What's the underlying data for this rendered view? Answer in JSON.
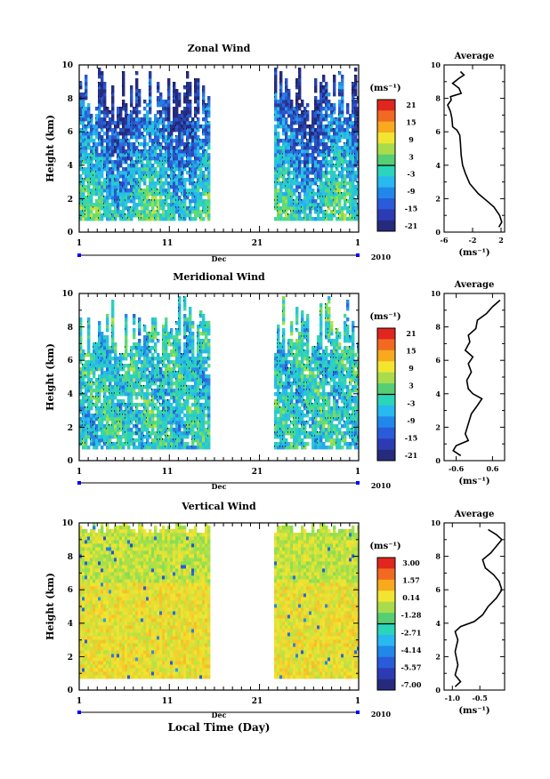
{
  "chart_data": [
    {
      "type": "heatmap",
      "title": "Zonal Wind",
      "ylabel": "Height (km)",
      "ylim": [
        0,
        10
      ],
      "y_ticks": [
        "0",
        "2",
        "4",
        "6",
        "8",
        "10"
      ],
      "x_ticks": [
        "1",
        "11",
        "21",
        "1"
      ],
      "month_label": "Dec",
      "year_label": "2010",
      "unit_label": "(ms⁻¹)",
      "colorbar_ticks": [
        "21",
        "15",
        "9",
        "3",
        "-3",
        "-9",
        "-15",
        "-21"
      ],
      "data_gap_days": [
        15.5,
        22.5
      ],
      "profile": {
        "title": "Average",
        "xlabel": "(ms⁻¹)",
        "x_ticks": [
          "-6",
          "-2",
          "2"
        ],
        "y_ticks": [
          "0",
          "2",
          "4",
          "6",
          "8",
          "10"
        ],
        "xlim": [
          -6,
          2.5
        ],
        "points": [
          [
            1.7,
            0.3
          ],
          [
            2.1,
            0.6
          ],
          [
            1.8,
            1.0
          ],
          [
            1.0,
            1.5
          ],
          [
            0.2,
            1.8
          ],
          [
            -1.2,
            2.3
          ],
          [
            -2.4,
            2.9
          ],
          [
            -3.0,
            3.5
          ],
          [
            -3.4,
            4.0
          ],
          [
            -3.6,
            4.6
          ],
          [
            -3.7,
            5.3
          ],
          [
            -3.8,
            5.8
          ],
          [
            -4.2,
            6.1
          ],
          [
            -4.8,
            6.3
          ],
          [
            -4.9,
            6.8
          ],
          [
            -5.1,
            7.2
          ],
          [
            -5.5,
            7.6
          ],
          [
            -5.0,
            7.9
          ],
          [
            -5.1,
            8.1
          ],
          [
            -3.6,
            8.3
          ],
          [
            -3.9,
            8.6
          ],
          [
            -4.8,
            8.9
          ],
          [
            -3.9,
            9.2
          ],
          [
            -3.2,
            9.4
          ],
          [
            -3.7,
            9.6
          ]
        ]
      }
    },
    {
      "type": "heatmap",
      "title": "Meridional Wind",
      "ylabel": "Height (km)",
      "ylim": [
        0,
        10
      ],
      "y_ticks": [
        "0",
        "2",
        "4",
        "6",
        "8",
        "10"
      ],
      "x_ticks": [
        "1",
        "11",
        "21",
        "1"
      ],
      "month_label": "Dec",
      "year_label": "2010",
      "unit_label": "(ms⁻¹)",
      "colorbar_ticks": [
        "21",
        "15",
        "9",
        "3",
        "-3",
        "-9",
        "-15",
        "-21"
      ],
      "data_gap_days": [
        15.5,
        22.5
      ],
      "profile": {
        "title": "Average",
        "xlabel": "(ms⁻¹)",
        "x_ticks": [
          "-0.6",
          "0.6"
        ],
        "y_ticks": [
          "0",
          "2",
          "4",
          "6",
          "8",
          "10"
        ],
        "xlim": [
          -1.0,
          1.0
        ],
        "points": [
          [
            -0.45,
            0.3
          ],
          [
            -0.7,
            0.6
          ],
          [
            -0.6,
            0.9
          ],
          [
            -0.2,
            1.2
          ],
          [
            -0.3,
            1.6
          ],
          [
            -0.2,
            2.2
          ],
          [
            -0.1,
            2.8
          ],
          [
            0.1,
            3.3
          ],
          [
            0.25,
            3.7
          ],
          [
            -0.05,
            4.0
          ],
          [
            -0.2,
            4.3
          ],
          [
            -0.25,
            4.8
          ],
          [
            -0.1,
            5.3
          ],
          [
            -0.2,
            5.8
          ],
          [
            -0.05,
            6.2
          ],
          [
            -0.3,
            6.6
          ],
          [
            -0.15,
            7.1
          ],
          [
            -0.2,
            7.5
          ],
          [
            0.05,
            7.9
          ],
          [
            0.1,
            8.4
          ],
          [
            0.4,
            8.8
          ],
          [
            0.6,
            9.2
          ],
          [
            0.85,
            9.6
          ]
        ]
      }
    },
    {
      "type": "heatmap",
      "title": "Vertical Wind",
      "ylabel": "Height (km)",
      "ylim": [
        0,
        10
      ],
      "y_ticks": [
        "0",
        "2",
        "4",
        "6",
        "8",
        "10"
      ],
      "x_ticks": [
        "1",
        "11",
        "21",
        "1"
      ],
      "month_label": "Dec",
      "year_label": "2010",
      "xlabel": "Local Time (Day)",
      "unit_label": "(ms⁻¹)",
      "colorbar_ticks": [
        "3.00",
        "1.57",
        "0.14",
        "-1.28",
        "-2.71",
        "-4.14",
        "-5.57",
        "-7.00"
      ],
      "data_gap_days": [
        15.5,
        22.5
      ],
      "profile": {
        "title": "Average",
        "xlabel": "(ms⁻¹)",
        "x_ticks": [
          "-1.0",
          "-0.5"
        ],
        "y_ticks": [
          "0",
          "2",
          "4",
          "6",
          "8",
          "10"
        ],
        "xlim": [
          -1.15,
          -0.05
        ],
        "points": [
          [
            -0.95,
            0.2
          ],
          [
            -0.85,
            0.5
          ],
          [
            -0.95,
            0.9
          ],
          [
            -0.9,
            1.5
          ],
          [
            -0.95,
            2.3
          ],
          [
            -0.9,
            3.0
          ],
          [
            -0.95,
            3.5
          ],
          [
            -0.85,
            3.8
          ],
          [
            -0.6,
            4.1
          ],
          [
            -0.45,
            4.5
          ],
          [
            -0.35,
            5.0
          ],
          [
            -0.2,
            5.5
          ],
          [
            -0.1,
            6.0
          ],
          [
            -0.15,
            6.5
          ],
          [
            -0.25,
            6.9
          ],
          [
            -0.4,
            7.3
          ],
          [
            -0.45,
            7.8
          ],
          [
            -0.3,
            8.2
          ],
          [
            -0.2,
            8.6
          ],
          [
            -0.1,
            9.0
          ],
          [
            -0.2,
            9.3
          ],
          [
            -0.35,
            9.6
          ]
        ]
      }
    }
  ]
}
